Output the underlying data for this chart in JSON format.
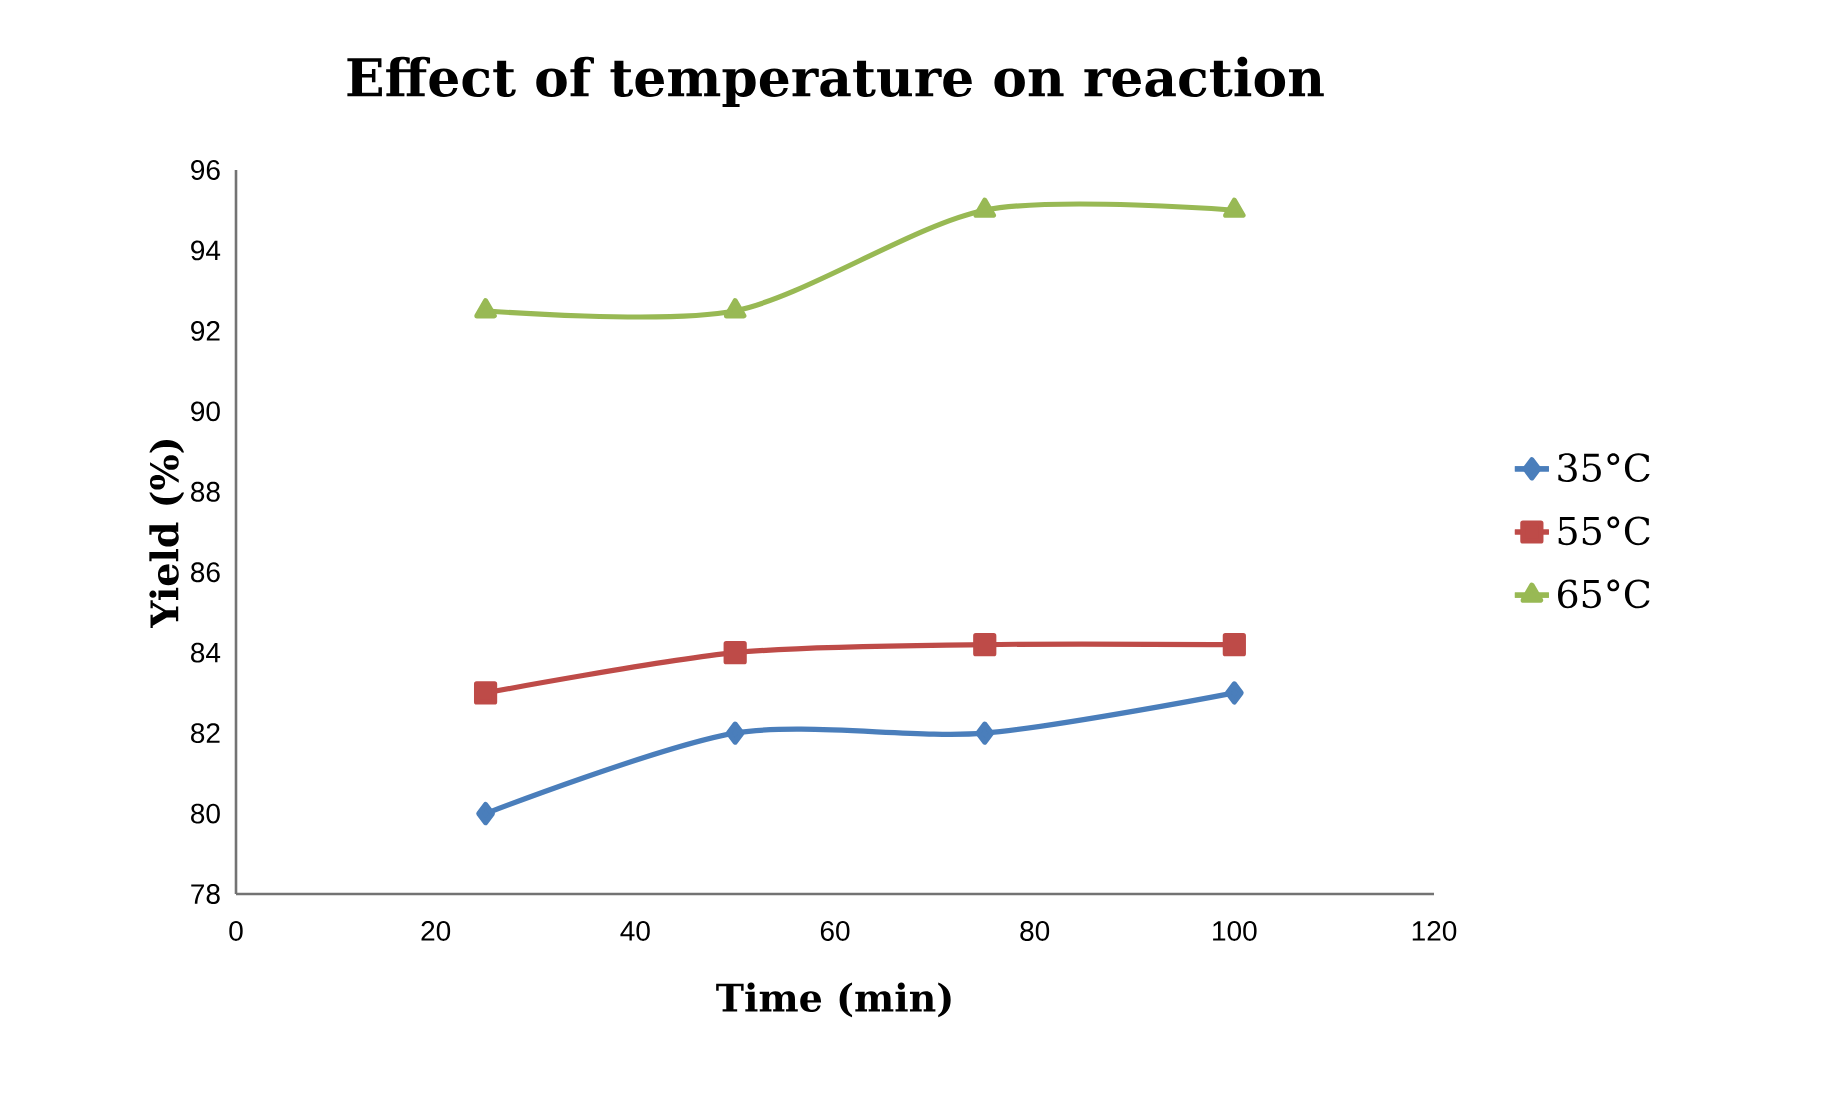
{
  "chart_data": {
    "type": "line",
    "title": "Effect of temperature on reaction",
    "xlabel": "Time (min)",
    "ylabel": "Yield (%)",
    "x": [
      25,
      50,
      75,
      100
    ],
    "xlim": [
      0,
      120
    ],
    "xticks": [
      0,
      20,
      40,
      60,
      80,
      100,
      120
    ],
    "ylim": [
      78,
      96
    ],
    "yticks": [
      78,
      80,
      82,
      84,
      86,
      88,
      90,
      92,
      94,
      96
    ],
    "grid": false,
    "legend": "right",
    "series": [
      {
        "name": "35°C",
        "color": "#4a7ebb",
        "marker": "diamond",
        "values": [
          80,
          82,
          82,
          83
        ]
      },
      {
        "name": "55°C",
        "color": "#be4b48",
        "marker": "square",
        "values": [
          83,
          84,
          84.2,
          84.2
        ]
      },
      {
        "name": "65°C",
        "color": "#98b954",
        "marker": "triangle",
        "values": [
          92.5,
          92.5,
          95,
          95
        ]
      }
    ]
  }
}
